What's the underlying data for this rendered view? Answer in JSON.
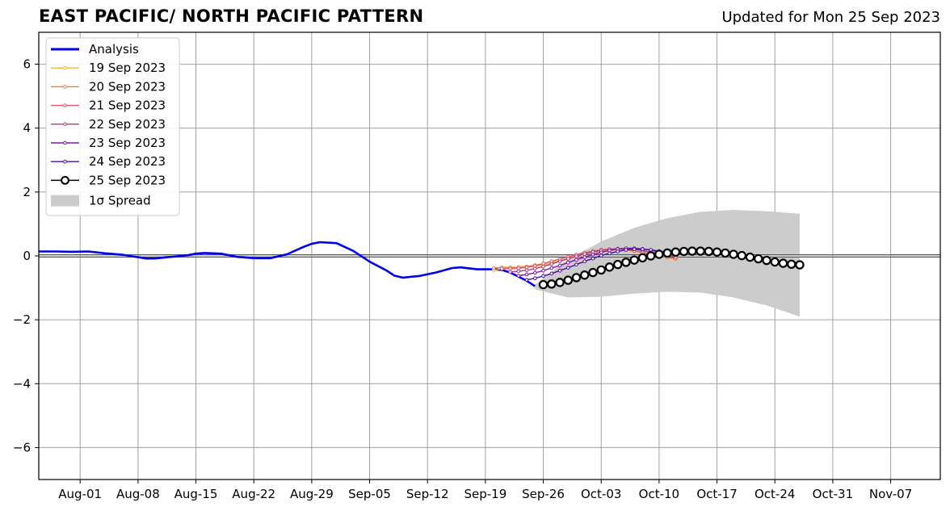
{
  "header": {
    "title": "EAST PACIFIC/ NORTH PACIFIC PATTERN",
    "updated": "Updated for Mon 25 Sep 2023"
  },
  "chart_data": {
    "type": "line",
    "title": "EAST PACIFIC/ NORTH PACIFIC PATTERN",
    "xlabel": "",
    "ylabel": "",
    "xlim": [
      "2023-07-27",
      "2023-11-13"
    ],
    "ylim": [
      -7,
      7
    ],
    "grid": true,
    "legend_position": "top-left",
    "x_tick_labels": [
      "Aug-01",
      "Aug-08",
      "Aug-15",
      "Aug-22",
      "Aug-29",
      "Sep-05",
      "Sep-12",
      "Sep-19",
      "Sep-26",
      "Oct-03",
      "Oct-10",
      "Oct-17",
      "Oct-24",
      "Oct-31",
      "Nov-07"
    ],
    "x_tick_dates": [
      "2023-08-01",
      "2023-08-08",
      "2023-08-15",
      "2023-08-22",
      "2023-08-29",
      "2023-09-05",
      "2023-09-12",
      "2023-09-19",
      "2023-09-26",
      "2023-10-03",
      "2023-10-10",
      "2023-10-17",
      "2023-10-24",
      "2023-10-31",
      "2023-11-07"
    ],
    "y_ticks": [
      6,
      4,
      2,
      0,
      -2,
      -4,
      -6
    ],
    "y_tick_labels": [
      "6",
      "4",
      "2",
      "0",
      "−2",
      "−4",
      "−6"
    ],
    "legend": [
      "Analysis",
      "19 Sep 2023",
      "20 Sep 2023",
      "21 Sep 2023",
      "22 Sep 2023",
      "23 Sep 2023",
      "24 Sep 2023",
      "25 Sep 2023",
      "1σ Spread"
    ],
    "series": [
      {
        "name": "Analysis",
        "color": "#0000ee",
        "points": [
          [
            "2023-07-27",
            0.14
          ],
          [
            "2023-07-29",
            0.14
          ],
          [
            "2023-07-31",
            0.13
          ],
          [
            "2023-08-02",
            0.14
          ],
          [
            "2023-08-04",
            0.08
          ],
          [
            "2023-08-06",
            0.04
          ],
          [
            "2023-08-08",
            -0.04
          ],
          [
            "2023-08-09",
            -0.08
          ],
          [
            "2023-08-10",
            -0.08
          ],
          [
            "2023-08-12",
            -0.03
          ],
          [
            "2023-08-14",
            0.02
          ],
          [
            "2023-08-15",
            0.07
          ],
          [
            "2023-08-16",
            0.09
          ],
          [
            "2023-08-18",
            0.07
          ],
          [
            "2023-08-20",
            -0.03
          ],
          [
            "2023-08-22",
            -0.07
          ],
          [
            "2023-08-24",
            -0.07
          ],
          [
            "2023-08-26",
            0.05
          ],
          [
            "2023-08-28",
            0.28
          ],
          [
            "2023-08-29",
            0.38
          ],
          [
            "2023-08-30",
            0.43
          ],
          [
            "2023-09-01",
            0.4
          ],
          [
            "2023-09-03",
            0.16
          ],
          [
            "2023-09-05",
            -0.18
          ],
          [
            "2023-09-07",
            -0.45
          ],
          [
            "2023-09-08",
            -0.62
          ],
          [
            "2023-09-09",
            -0.68
          ],
          [
            "2023-09-11",
            -0.63
          ],
          [
            "2023-09-13",
            -0.52
          ],
          [
            "2023-09-15",
            -0.38
          ],
          [
            "2023-09-16",
            -0.36
          ],
          [
            "2023-09-18",
            -0.42
          ],
          [
            "2023-09-20",
            -0.42
          ],
          [
            "2023-09-21",
            -0.44
          ],
          [
            "2023-09-22",
            -0.52
          ],
          [
            "2023-09-24",
            -0.78
          ],
          [
            "2023-09-25",
            -0.95
          ]
        ]
      },
      {
        "name": "19 Sep 2023",
        "color": "#f5b731",
        "start": "2023-09-20",
        "values": [
          -0.45,
          -0.4,
          -0.38,
          -0.36,
          -0.35,
          -0.33,
          -0.28,
          -0.22,
          -0.15,
          -0.08,
          0.0,
          0.06,
          0.12,
          0.16,
          0.19,
          0.2,
          0.18,
          0.15,
          0.1,
          0.05,
          0.0,
          -0.05,
          -0.1
        ]
      },
      {
        "name": "20 Sep 2023",
        "color": "#f07f3c",
        "start": "2023-09-20",
        "values": [
          -0.38,
          -0.36,
          -0.36,
          -0.35,
          -0.33,
          -0.29,
          -0.24,
          -0.17,
          -0.1,
          -0.03,
          0.04,
          0.1,
          0.15,
          0.19,
          0.21,
          0.22,
          0.2,
          0.16,
          0.11,
          0.06,
          0.01,
          -0.04,
          -0.09
        ]
      },
      {
        "name": "21 Sep 2023",
        "color": "#dd5a6c",
        "start": "2023-09-21",
        "values": [
          -0.4,
          -0.4,
          -0.39,
          -0.36,
          -0.31,
          -0.24,
          -0.17,
          -0.1,
          -0.03,
          0.04,
          0.1,
          0.15,
          0.19,
          0.21,
          0.22,
          0.2,
          0.16,
          0.11,
          0.06,
          0.01,
          -0.04,
          -0.08
        ]
      },
      {
        "name": "22 Sep 2023",
        "color": "#b03a8c",
        "start": "2023-09-22",
        "values": [
          -0.5,
          -0.48,
          -0.45,
          -0.4,
          -0.33,
          -0.25,
          -0.17,
          -0.09,
          -0.01,
          0.06,
          0.12,
          0.17,
          0.21,
          0.23,
          0.23,
          0.21,
          0.17,
          0.12,
          0.07,
          0.02,
          -0.03
        ]
      },
      {
        "name": "23 Sep 2023",
        "color": "#8213a8",
        "start": "2023-09-23",
        "values": [
          -0.62,
          -0.58,
          -0.53,
          -0.46,
          -0.38,
          -0.3,
          -0.21,
          -0.12,
          -0.04,
          0.04,
          0.11,
          0.17,
          0.21,
          0.24,
          0.24,
          0.22,
          0.18,
          0.13,
          0.08,
          0.03
        ]
      },
      {
        "name": "24 Sep 2023",
        "color": "#4b0c9e",
        "start": "2023-09-24",
        "values": [
          -0.75,
          -0.7,
          -0.63,
          -0.55,
          -0.46,
          -0.37,
          -0.27,
          -0.17,
          -0.08,
          0.01,
          0.08,
          0.14,
          0.19,
          0.21,
          0.21,
          0.19,
          0.15,
          0.1,
          0.05
        ]
      },
      {
        "name": "25 Sep 2023",
        "color": "#000000",
        "start": "2023-09-26",
        "values": [
          -0.9,
          -0.88,
          -0.83,
          -0.76,
          -0.68,
          -0.6,
          -0.52,
          -0.44,
          -0.35,
          -0.27,
          -0.2,
          -0.13,
          -0.06,
          0.0,
          0.05,
          0.09,
          0.12,
          0.14,
          0.15,
          0.15,
          0.14,
          0.12,
          0.09,
          0.05,
          0.01,
          -0.04,
          -0.09,
          -0.14,
          -0.19,
          -0.23,
          -0.26,
          -0.28
        ]
      }
    ],
    "spread": {
      "name": "1σ Spread",
      "color": "#cccccc",
      "x": [
        "2023-09-25",
        "2023-09-29",
        "2023-10-03",
        "2023-10-07",
        "2023-10-11",
        "2023-10-15",
        "2023-10-19",
        "2023-10-23",
        "2023-10-27"
      ],
      "upper": [
        -0.9,
        -0.1,
        0.45,
        0.88,
        1.18,
        1.38,
        1.44,
        1.4,
        1.32
      ],
      "lower": [
        -1.05,
        -1.3,
        -1.28,
        -1.18,
        -1.12,
        -1.15,
        -1.3,
        -1.55,
        -1.9
      ]
    }
  }
}
